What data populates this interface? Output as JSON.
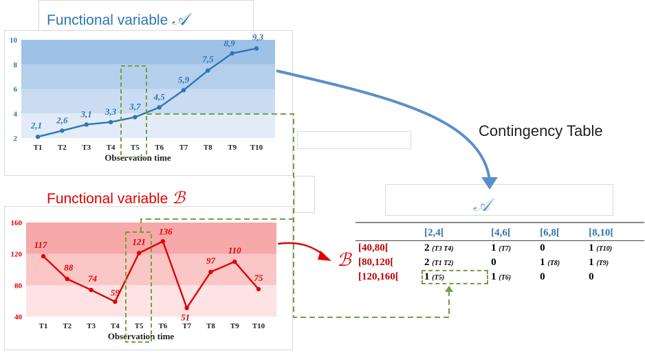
{
  "panel_a": {
    "title": "Functional variable",
    "symbol": "𝒜",
    "xlabel": "Observation time"
  },
  "panel_b": {
    "title": "Functional variable",
    "symbol": "ℬ",
    "xlabel": "Observation time"
  },
  "contingency": {
    "title": "Contingency Table",
    "col_symbol": "𝒜",
    "row_symbol": "ℬ",
    "columns": [
      "[2,4[",
      "[4,6[",
      "[6,8[",
      "[8,10["
    ],
    "rows": [
      {
        "label": "[40,80[",
        "cells": [
          {
            "v": "2",
            "t": "(T3 T4)"
          },
          {
            "v": "1",
            "t": "(T7)"
          },
          {
            "v": "0",
            "t": ""
          },
          {
            "v": "1",
            "t": "(T10)"
          }
        ]
      },
      {
        "label": "[80,120[",
        "cells": [
          {
            "v": "2",
            "t": "(T1 T2)"
          },
          {
            "v": "0",
            "t": ""
          },
          {
            "v": "1",
            "t": "(T8)"
          },
          {
            "v": "1",
            "t": "(T9)"
          }
        ]
      },
      {
        "label": "[120,160[",
        "cells": [
          {
            "v": "1",
            "t": "(T5)"
          },
          {
            "v": "1",
            "t": "(T6)"
          },
          {
            "v": "0",
            "t": ""
          },
          {
            "v": "0",
            "t": ""
          }
        ]
      }
    ]
  },
  "colors": {
    "blue": "#2e75b6",
    "red": "#e00000",
    "green_dash": "#70a040"
  },
  "chart_data": [
    {
      "type": "line",
      "x": [
        "T1",
        "T2",
        "T3",
        "T4",
        "T5",
        "T6",
        "T7",
        "T8",
        "T9",
        "T10"
      ],
      "labels": [
        "2,1",
        "2,6",
        "3,1",
        "3,3",
        "3,7",
        "4,5",
        "5,9",
        "7,5",
        "8,9",
        "9,3"
      ],
      "values": [
        2.1,
        2.6,
        3.1,
        3.3,
        3.7,
        4.5,
        5.9,
        7.5,
        8.9,
        9.3
      ],
      "yticks": [
        "2",
        "4",
        "6",
        "8",
        "10"
      ],
      "ylim": [
        2,
        10
      ],
      "bands": [
        2,
        4,
        6,
        8,
        10
      ],
      "xlabel": "Observation time",
      "color": "#2e75b6"
    },
    {
      "type": "line",
      "x": [
        "T1",
        "T2",
        "T3",
        "T4",
        "T5",
        "T6",
        "T7",
        "T8",
        "T9",
        "T10"
      ],
      "labels": [
        "117",
        "88",
        "74",
        "59",
        "121",
        "136",
        "51",
        "97",
        "110",
        "75"
      ],
      "values": [
        117,
        88,
        74,
        59,
        121,
        136,
        51,
        97,
        110,
        75
      ],
      "yticks": [
        "40",
        "80",
        "120",
        "160"
      ],
      "ylim": [
        40,
        160
      ],
      "bands": [
        40,
        80,
        120,
        160
      ],
      "xlabel": "Observation time",
      "color": "#e00000"
    }
  ]
}
